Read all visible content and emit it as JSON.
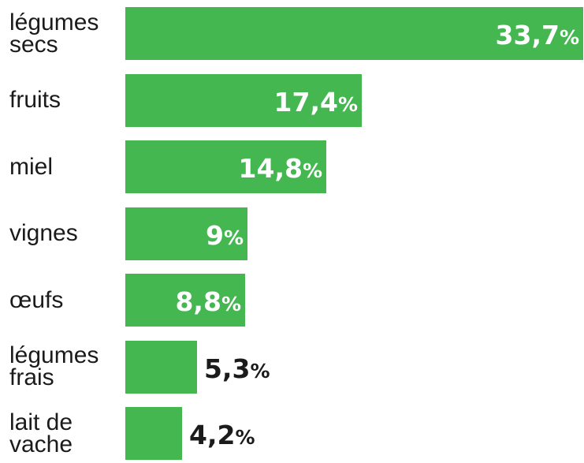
{
  "chart_data": {
    "type": "bar",
    "orientation": "horizontal",
    "categories": [
      "légumes\nsecs",
      "fruits",
      "miel",
      "vignes",
      "œufs",
      "légumes\nfrais",
      "lait de\nvache"
    ],
    "values": [
      33.7,
      17.4,
      14.8,
      9,
      8.8,
      5.3,
      4.2
    ],
    "value_labels": [
      "33,7",
      "17,4",
      "14,8",
      "9",
      "8,8",
      "5,3",
      "4,2"
    ],
    "unit": "%",
    "xlim": [
      0,
      33.7
    ],
    "bar_color": "#44b751",
    "title": "",
    "xlabel": "",
    "ylabel": "",
    "grid": false,
    "legend": "none"
  }
}
